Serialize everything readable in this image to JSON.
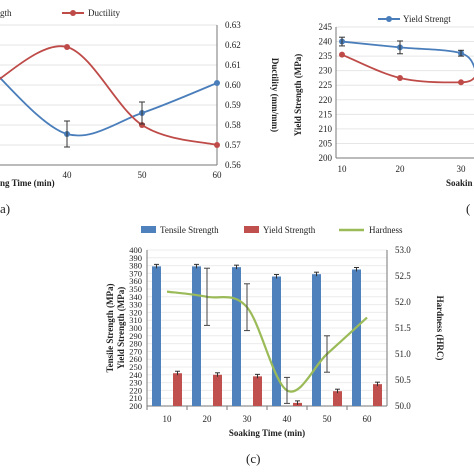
{
  "panels": {
    "a": {
      "label": "a)"
    },
    "b": {
      "label": "("
    },
    "c": {
      "label": "(c)"
    }
  },
  "chart_data": [
    {
      "id": "a",
      "type": "line",
      "x": [
        40,
        50,
        60
      ],
      "xlabel": "ng Time (min)",
      "ylabel_right": "Ductility (mm/mm)",
      "y_right_lim": [
        0.56,
        0.63
      ],
      "y_right_ticks": [
        "0.56",
        "0.57",
        "0.58",
        "0.59",
        "0.60",
        "0.61",
        "0.62",
        "0.63"
      ],
      "x_ticks": [
        "40",
        "50",
        "60"
      ],
      "legend": [
        "gth",
        "Ductility"
      ],
      "series": [
        {
          "name": "gth",
          "color": "#4a7ebb",
          "left_x": 30,
          "left_y": 0.6075,
          "values": [
            0.5755,
            0.586,
            0.601
          ]
        },
        {
          "name": "Ductility",
          "color": "#be4b48",
          "left_x": 30,
          "left_y": 0.6005,
          "values": [
            0.619,
            0.58,
            0.57
          ]
        }
      ]
    },
    {
      "id": "b",
      "type": "line",
      "x": [
        10,
        20,
        30
      ],
      "ylabel": "Yield Strength (MPa)",
      "ylim": [
        200,
        245
      ],
      "y_ticks": [
        "200",
        "205",
        "210",
        "215",
        "220",
        "225",
        "230",
        "235",
        "240",
        "245"
      ],
      "x_ticks": [
        "10",
        "20",
        "30"
      ],
      "xlabel": "Soakin",
      "legend": [
        "Yield Strengt"
      ],
      "series": [
        {
          "name": "Yield Strengt",
          "color": "#4a7ebb",
          "values": [
            240,
            238,
            236
          ],
          "right_edge_y": 230
        },
        {
          "name": "",
          "color": "#be4b48",
          "values": [
            235.5,
            227.5,
            226
          ],
          "right_edge_y": 228
        }
      ]
    },
    {
      "id": "c",
      "type": "bar",
      "categories": [
        "10",
        "20",
        "30",
        "40",
        "50",
        "60"
      ],
      "xlabel": "Soaking Time (min)",
      "ylabel_left": [
        "Tensile Strength (MPa)",
        "Yield Strength (MPa)"
      ],
      "ylabel_right": "Hardness (HRC)",
      "ylim": [
        200,
        400
      ],
      "y_ticks": [
        "200",
        "210",
        "220",
        "230",
        "240",
        "250",
        "260",
        "270",
        "280",
        "290",
        "300",
        "310",
        "320",
        "330",
        "340",
        "350",
        "360",
        "370",
        "380",
        "390",
        "400"
      ],
      "y_right_lim": [
        50.0,
        53.0
      ],
      "y_right_ticks": [
        "50.0",
        "50.5",
        "51.0",
        "51.5",
        "52.0",
        "52.5",
        "53.0"
      ],
      "legend": [
        "Tensile Strength",
        "Yield Strength",
        "Hardness"
      ],
      "series": [
        {
          "name": "Tensile Strength",
          "color": "#4f81bd",
          "values": [
            379,
            379,
            378,
            366,
            369,
            375
          ]
        },
        {
          "name": "Yield Strength",
          "color": "#c0504d",
          "values": [
            242,
            240,
            238,
            204,
            219,
            228
          ]
        },
        {
          "name": "Hardness",
          "color": "#9bbb59",
          "values": [
            52.2,
            52.1,
            51.9,
            50.3,
            51.0,
            51.7
          ],
          "errors": [
            0.0,
            0.55,
            0.45,
            0.25,
            0.35,
            0.0
          ]
        }
      ]
    }
  ]
}
